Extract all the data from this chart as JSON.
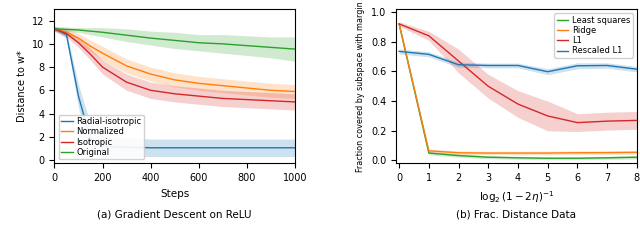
{
  "left": {
    "xlabel": "Steps",
    "ylabel": "Distance to w*",
    "xlim": [
      0,
      1000
    ],
    "ylim": [
      -0.3,
      13
    ],
    "yticks": [
      0,
      2,
      4,
      6,
      8,
      10,
      12
    ],
    "xticks": [
      0,
      200,
      400,
      600,
      800,
      1000
    ],
    "steps": [
      0,
      50,
      100,
      150,
      200,
      300,
      400,
      500,
      600,
      700,
      800,
      900,
      1000
    ],
    "series": {
      "Radial-isotropic": {
        "color": "#1f77b4",
        "mean": [
          11.3,
          10.8,
          5.5,
          1.8,
          1.15,
          1.1,
          1.05,
          1.05,
          1.05,
          1.05,
          1.05,
          1.05,
          1.05
        ],
        "lower": [
          11.15,
          10.5,
          4.5,
          0.5,
          0.3,
          0.3,
          0.3,
          0.3,
          0.3,
          0.3,
          0.3,
          0.3,
          0.3
        ],
        "upper": [
          11.45,
          11.1,
          6.5,
          3.1,
          2.0,
          1.9,
          1.8,
          1.8,
          1.8,
          1.8,
          1.8,
          1.8,
          1.8
        ]
      },
      "Normalized": {
        "color": "#ff7f0e",
        "mean": [
          11.3,
          11.0,
          10.5,
          9.8,
          9.2,
          8.1,
          7.4,
          6.9,
          6.6,
          6.4,
          6.2,
          6.0,
          5.9
        ],
        "lower": [
          11.1,
          10.7,
          10.1,
          9.3,
          8.6,
          7.5,
          6.8,
          6.3,
          6.0,
          5.8,
          5.6,
          5.4,
          5.3
        ],
        "upper": [
          11.5,
          11.3,
          10.9,
          10.3,
          9.8,
          8.7,
          8.0,
          7.5,
          7.2,
          7.0,
          6.8,
          6.6,
          6.5
        ]
      },
      "Isotropic": {
        "color": "#d62728",
        "mean": [
          11.3,
          10.9,
          10.1,
          9.1,
          8.0,
          6.7,
          6.0,
          5.7,
          5.5,
          5.3,
          5.2,
          5.1,
          5.0
        ],
        "lower": [
          11.1,
          10.6,
          9.7,
          8.6,
          7.4,
          6.0,
          5.3,
          5.0,
          4.8,
          4.6,
          4.5,
          4.4,
          4.3
        ],
        "upper": [
          11.5,
          11.2,
          10.5,
          9.6,
          8.6,
          7.4,
          6.7,
          6.4,
          6.2,
          6.0,
          5.9,
          5.8,
          5.7
        ]
      },
      "Original": {
        "color": "#2ca02c",
        "mean": [
          11.3,
          11.25,
          11.2,
          11.1,
          11.0,
          10.75,
          10.5,
          10.3,
          10.1,
          10.0,
          9.85,
          9.7,
          9.55
        ],
        "lower": [
          11.1,
          11.05,
          11.0,
          10.8,
          10.6,
          10.2,
          9.9,
          9.6,
          9.4,
          9.2,
          9.0,
          8.8,
          8.5
        ],
        "upper": [
          11.5,
          11.45,
          11.4,
          11.4,
          11.4,
          11.3,
          11.1,
          11.0,
          10.8,
          10.8,
          10.7,
          10.6,
          10.6
        ]
      }
    },
    "legend_order": [
      "Radial-isotropic",
      "Normalized",
      "Isotropic",
      "Original"
    ]
  },
  "right": {
    "xlabel": "log_2(1-2eta)^{-1}",
    "ylabel": "Fraction covered by subspace with margin",
    "xlim": [
      -0.1,
      8
    ],
    "ylim": [
      -0.02,
      1.02
    ],
    "yticks": [
      0.0,
      0.2,
      0.4,
      0.6,
      0.8,
      1.0
    ],
    "xticks": [
      0,
      1,
      2,
      3,
      4,
      5,
      6,
      7,
      8
    ],
    "xvals": [
      0,
      1,
      2,
      3,
      4,
      5,
      6,
      7,
      8
    ],
    "series": {
      "Least squares": {
        "color": "#2ca02c",
        "mean": [
          0.92,
          0.05,
          0.033,
          0.022,
          0.018,
          0.015,
          0.015,
          0.018,
          0.022
        ],
        "lower": [
          0.905,
          0.038,
          0.022,
          0.012,
          0.008,
          0.005,
          0.005,
          0.008,
          0.01
        ],
        "upper": [
          0.935,
          0.062,
          0.044,
          0.032,
          0.028,
          0.025,
          0.025,
          0.028,
          0.034
        ]
      },
      "Ridge": {
        "color": "#ff7f0e",
        "mean": [
          0.92,
          0.065,
          0.052,
          0.05,
          0.05,
          0.05,
          0.052,
          0.053,
          0.055
        ],
        "lower": [
          0.905,
          0.053,
          0.04,
          0.038,
          0.038,
          0.038,
          0.04,
          0.041,
          0.043
        ],
        "upper": [
          0.935,
          0.077,
          0.064,
          0.062,
          0.062,
          0.062,
          0.064,
          0.065,
          0.067
        ]
      },
      "L1": {
        "color": "#d62728",
        "mean": [
          0.92,
          0.84,
          0.67,
          0.5,
          0.38,
          0.3,
          0.255,
          0.265,
          0.27
        ],
        "lower": [
          0.905,
          0.81,
          0.59,
          0.42,
          0.29,
          0.2,
          0.195,
          0.205,
          0.21
        ],
        "upper": [
          0.935,
          0.87,
          0.75,
          0.58,
          0.47,
          0.4,
          0.315,
          0.325,
          0.33
        ]
      },
      "Rescaled L1": {
        "color": "#1f77b4",
        "mean": [
          0.735,
          0.715,
          0.645,
          0.64,
          0.64,
          0.598,
          0.638,
          0.64,
          0.615
        ],
        "lower": [
          0.718,
          0.698,
          0.628,
          0.624,
          0.624,
          0.578,
          0.618,
          0.622,
          0.597
        ],
        "upper": [
          0.752,
          0.732,
          0.662,
          0.656,
          0.656,
          0.618,
          0.658,
          0.658,
          0.633
        ]
      }
    },
    "legend_order": [
      "Least squares",
      "Ridge",
      "L1",
      "Rescaled L1"
    ]
  },
  "caption_left": "(a) Gradient Descent on ReLU",
  "caption_right": "(b) Frac. Distance Data"
}
